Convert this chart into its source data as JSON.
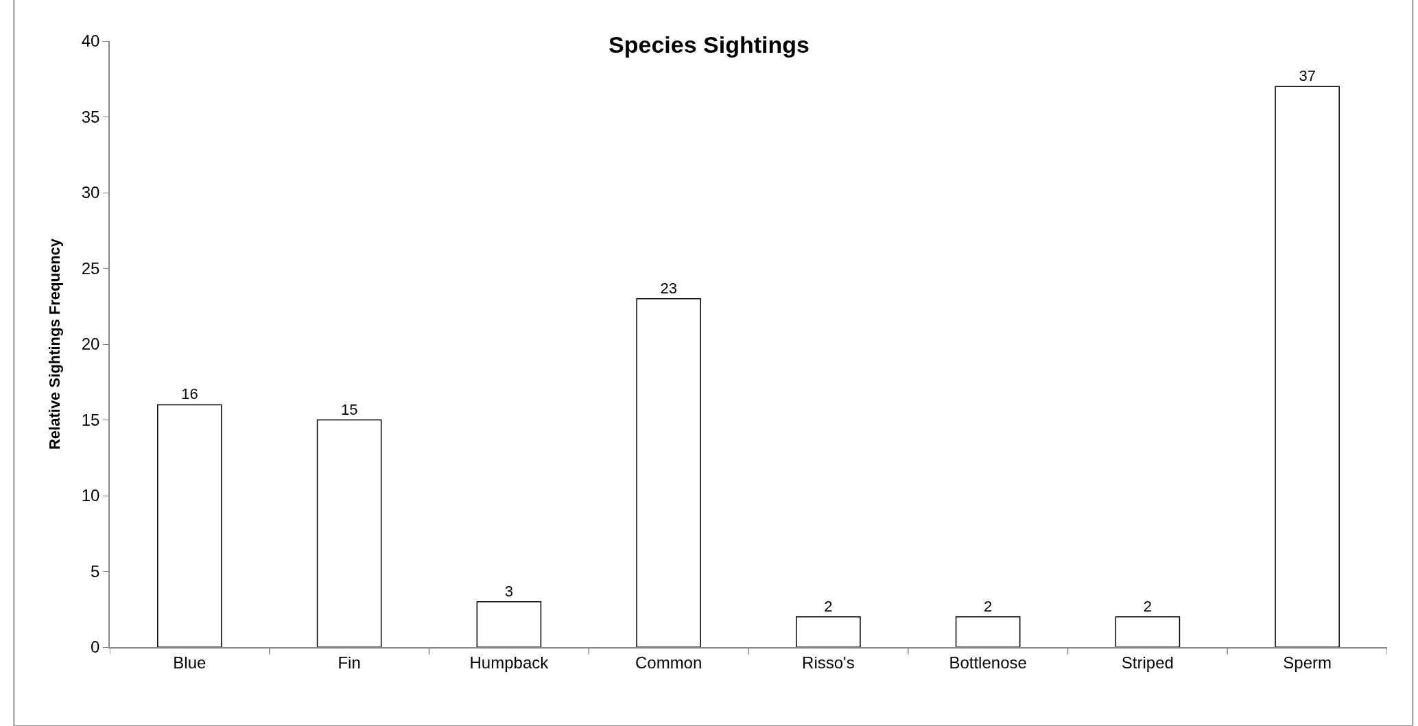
{
  "chart_data": {
    "type": "bar",
    "title": "Species Sightings",
    "ylabel": "Relative Sightings Frequency",
    "categories": [
      "Blue",
      "Fin",
      "Humpback",
      "Common",
      "Risso's",
      "Bottlenose",
      "Striped",
      "Sperm"
    ],
    "values": [
      16,
      15,
      3,
      23,
      2,
      2,
      2,
      37
    ],
    "color": "#ffffff",
    "ylim": [
      0,
      40
    ],
    "yticks": [
      0,
      5,
      10,
      15,
      20,
      25,
      30,
      35,
      40
    ],
    "data_labels": true,
    "legend": false
  }
}
